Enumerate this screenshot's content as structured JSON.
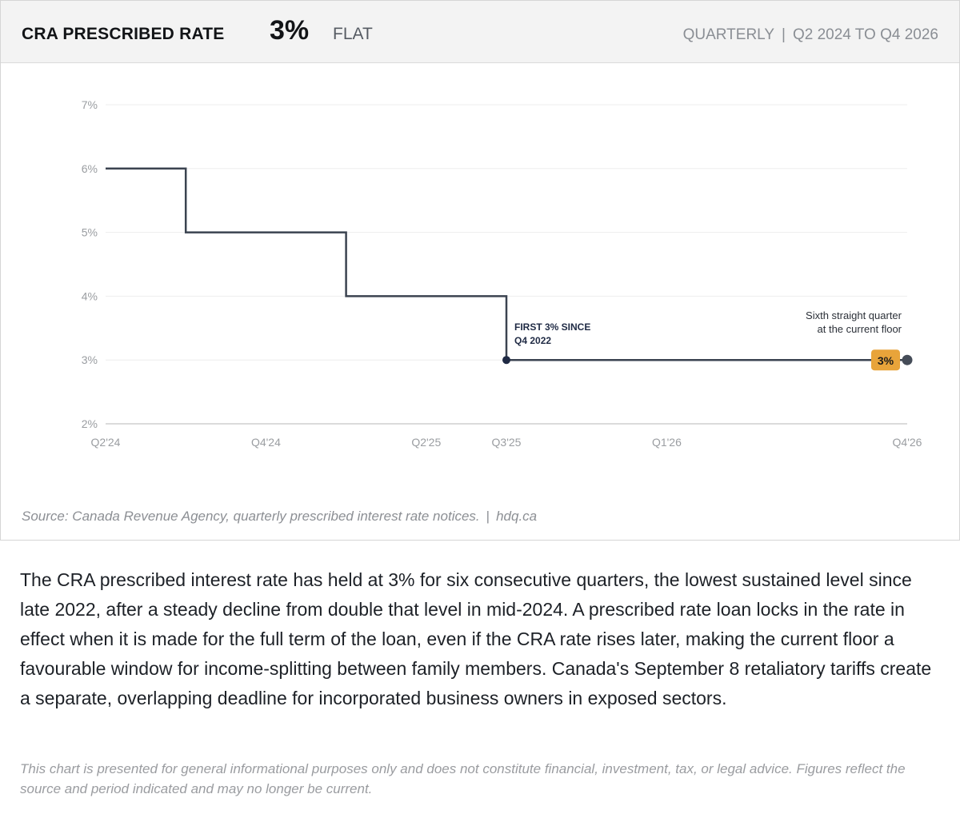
{
  "header": {
    "title": "CRA PRESCRIBED RATE",
    "current_value": "3%",
    "trend": "FLAT",
    "frequency": "QUARTERLY",
    "separator": "|",
    "period": "Q2 2024 TO Q4 2026"
  },
  "chart_data": {
    "type": "line",
    "step": true,
    "ylim": [
      2,
      7
    ],
    "yticks": [
      2,
      3,
      4,
      5,
      6,
      7
    ],
    "ytick_labels": [
      "2%",
      "3%",
      "4%",
      "5%",
      "6%",
      "7%"
    ],
    "x_quarters": [
      "Q2'24",
      "Q3'24",
      "Q4'24",
      "Q1'25",
      "Q2'25",
      "Q3'25",
      "Q4'25",
      "Q1'26",
      "Q2'26",
      "Q3'26",
      "Q4'26"
    ],
    "xtick_labels": [
      "Q2'24",
      "Q4'24",
      "Q2'25",
      "Q3'25",
      "Q1'26",
      "Q4'26"
    ],
    "series": [
      {
        "values": [
          6,
          5,
          5,
          4,
          4,
          3,
          3,
          3,
          3,
          3,
          3
        ],
        "color": "#3b4350"
      }
    ],
    "grid": true,
    "annotations": [
      {
        "x": "Q3'25",
        "lines": [
          "FIRST 3% SINCE",
          "Q4 2022"
        ]
      },
      {
        "x": "Q4'26",
        "lines": [
          "Sixth straight quarter",
          "at the current floor"
        ]
      }
    ],
    "end_badge": {
      "x": "Q4'26",
      "label": "3%",
      "color": "#e8a43a"
    }
  },
  "footer": {
    "source": "Source: Canada Revenue Agency, quarterly prescribed interest rate notices.",
    "separator": "|",
    "site": "hdq.ca"
  },
  "body_text": "The CRA prescribed interest rate has held at 3% for six consecutive quarters, the lowest sustained level since late 2022, after a steady decline from double that level in mid-2024. A prescribed rate loan locks in the rate in effect when it is made for the full term of the loan, even if the CRA rate rises later, making the current floor a favourable window for income-splitting between family members. Canada's September 8 retaliatory tariffs create a separate, overlapping deadline for incorporated business owners in exposed sectors.",
  "disclaimer": "This chart is presented for general informational purposes only and does not constitute financial, investment, tax, or legal advice. Figures reflect the source and period indicated and may no longer be current."
}
